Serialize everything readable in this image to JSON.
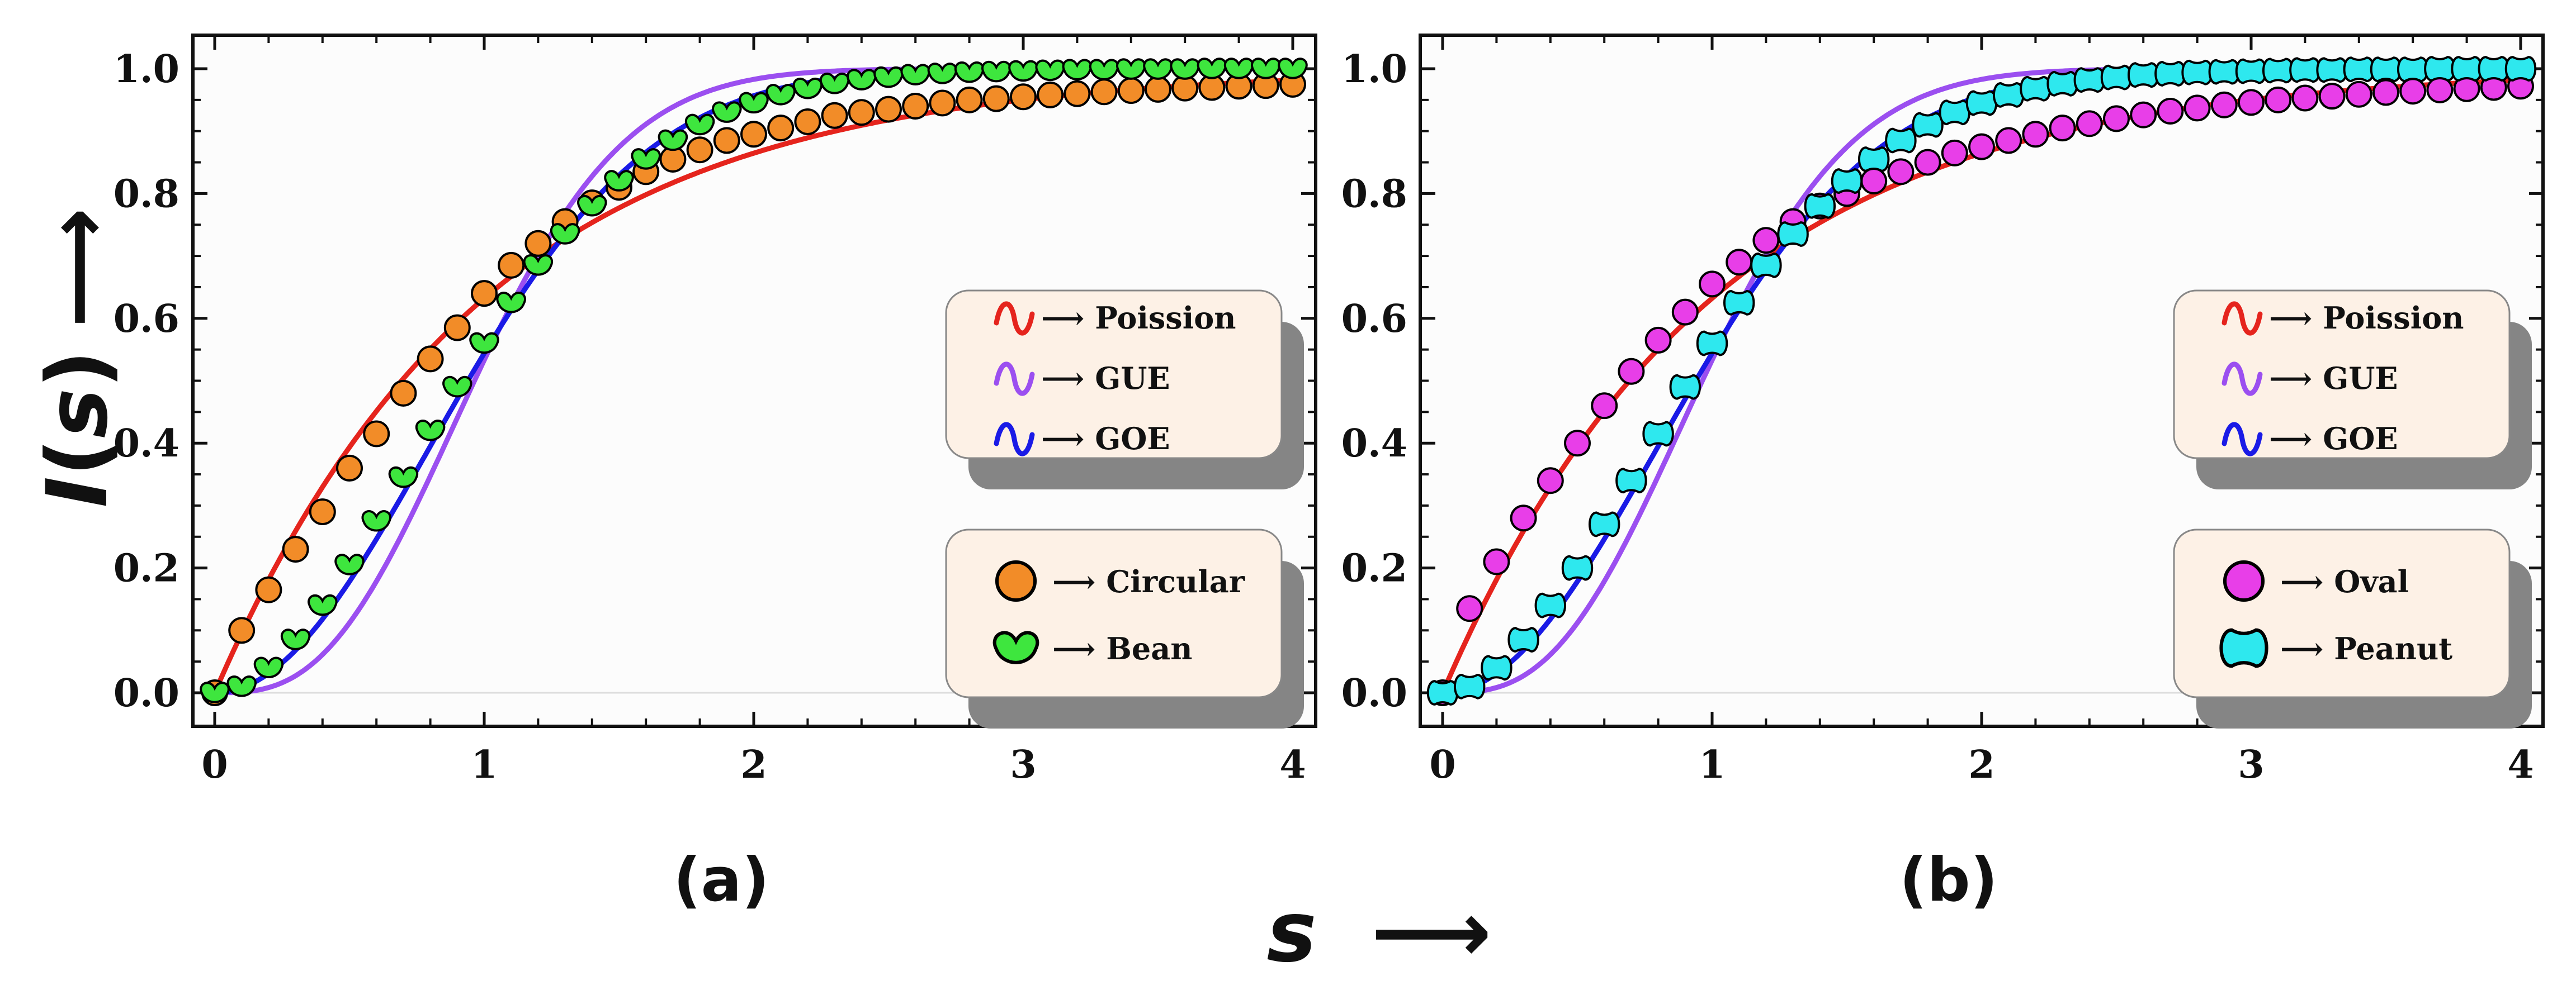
{
  "figure": {
    "ylabel_text": "I",
    "ylabel_open": "(",
    "ylabel_var": "s",
    "ylabel_close": ")",
    "ylabel_arrow": "⟶",
    "xlabel_var": "s",
    "xlabel_arrow": "⟶"
  },
  "legend_lines": [
    {
      "label": "⟶ Poission",
      "color": "#e5241d"
    },
    {
      "label": "⟶ GUE",
      "color": "#9b4ff0"
    },
    {
      "label": "⟶ GOE",
      "color": "#1a1ae6"
    }
  ],
  "colors": {
    "poisson": "#e5241d",
    "gue": "#9b4ff0",
    "goe": "#1a1ae6",
    "circular": "#f28c28",
    "bean": "#3ee63e",
    "oval": "#e83ee8",
    "peanut": "#2ee8ee",
    "legend_fill": "#fdf1e6",
    "legend_shadow": "#858585"
  },
  "chart_data": [
    {
      "type": "scatter",
      "panel": "(a)",
      "x_ticks": [
        "0",
        "1",
        "2",
        "3",
        "4"
      ],
      "y_ticks": [
        "0.0",
        "0.2",
        "0.4",
        "0.6",
        "0.8",
        "1.0"
      ],
      "xlim": [
        0,
        4
      ],
      "ylim": [
        0,
        1
      ],
      "curves": [
        {
          "name": "Poission",
          "formula": "1 - exp(-s)"
        },
        {
          "name": "GUE",
          "formula": "erf(2s/sqrt(pi)) - (4s/pi) exp(-4s^2/pi)"
        },
        {
          "name": "GOE",
          "formula": "1 - exp(-pi s^2 / 4)"
        }
      ],
      "series": [
        {
          "name": "Circular",
          "marker": "circle",
          "x": [
            0,
            0.1,
            0.2,
            0.3,
            0.4,
            0.5,
            0.6,
            0.7,
            0.8,
            0.9,
            1.0,
            1.1,
            1.2,
            1.3,
            1.4,
            1.5,
            1.6,
            1.7,
            1.8,
            1.9,
            2.0,
            2.1,
            2.2,
            2.3,
            2.4,
            2.5,
            2.6,
            2.7,
            2.8,
            2.9,
            3.0,
            3.1,
            3.2,
            3.3,
            3.4,
            3.5,
            3.6,
            3.7,
            3.8,
            3.9,
            4.0
          ],
          "y": [
            0.0,
            0.1,
            0.165,
            0.23,
            0.29,
            0.36,
            0.415,
            0.48,
            0.535,
            0.585,
            0.64,
            0.685,
            0.72,
            0.755,
            0.785,
            0.81,
            0.835,
            0.855,
            0.87,
            0.885,
            0.895,
            0.905,
            0.915,
            0.925,
            0.93,
            0.935,
            0.94,
            0.945,
            0.95,
            0.952,
            0.955,
            0.958,
            0.96,
            0.963,
            0.965,
            0.967,
            0.969,
            0.97,
            0.972,
            0.973,
            0.975
          ]
        },
        {
          "name": "Bean",
          "marker": "bean",
          "x": [
            0,
            0.1,
            0.2,
            0.3,
            0.4,
            0.5,
            0.6,
            0.7,
            0.8,
            0.9,
            1.0,
            1.1,
            1.2,
            1.3,
            1.4,
            1.5,
            1.6,
            1.7,
            1.8,
            1.9,
            2.0,
            2.1,
            2.2,
            2.3,
            2.4,
            2.5,
            2.6,
            2.7,
            2.8,
            2.9,
            3.0,
            3.1,
            3.2,
            3.3,
            3.4,
            3.5,
            3.6,
            3.7,
            3.8,
            3.9,
            4.0
          ],
          "y": [
            0.0,
            0.01,
            0.04,
            0.085,
            0.14,
            0.205,
            0.275,
            0.345,
            0.42,
            0.49,
            0.56,
            0.625,
            0.685,
            0.735,
            0.78,
            0.82,
            0.855,
            0.885,
            0.91,
            0.93,
            0.945,
            0.958,
            0.968,
            0.976,
            0.982,
            0.986,
            0.99,
            0.992,
            0.994,
            0.995,
            0.996,
            0.997,
            0.998,
            0.998,
            0.999,
            0.999,
            0.999,
            1.0,
            1.0,
            1.0,
            1.0
          ]
        }
      ]
    },
    {
      "type": "scatter",
      "panel": "(b)",
      "x_ticks": [
        "0",
        "1",
        "2",
        "3",
        "4"
      ],
      "y_ticks": [
        "0.0",
        "0.2",
        "0.4",
        "0.6",
        "0.8",
        "1.0"
      ],
      "xlim": [
        0,
        4
      ],
      "ylim": [
        0,
        1
      ],
      "curves": [
        {
          "name": "Poission",
          "formula": "1 - exp(-s)"
        },
        {
          "name": "GUE",
          "formula": "erf(2s/sqrt(pi)) - (4s/pi) exp(-4s^2/pi)"
        },
        {
          "name": "GOE",
          "formula": "1 - exp(-pi s^2 / 4)"
        }
      ],
      "series": [
        {
          "name": "Oval",
          "marker": "circle",
          "x": [
            0,
            0.1,
            0.2,
            0.3,
            0.4,
            0.5,
            0.6,
            0.7,
            0.8,
            0.9,
            1.0,
            1.1,
            1.2,
            1.3,
            1.4,
            1.5,
            1.6,
            1.7,
            1.8,
            1.9,
            2.0,
            2.1,
            2.2,
            2.3,
            2.4,
            2.5,
            2.6,
            2.7,
            2.8,
            2.9,
            3.0,
            3.1,
            3.2,
            3.3,
            3.4,
            3.5,
            3.6,
            3.7,
            3.8,
            3.9,
            4.0
          ],
          "y": [
            0.0,
            0.135,
            0.21,
            0.28,
            0.34,
            0.4,
            0.46,
            0.515,
            0.565,
            0.61,
            0.655,
            0.69,
            0.725,
            0.755,
            0.78,
            0.8,
            0.82,
            0.835,
            0.85,
            0.865,
            0.875,
            0.885,
            0.895,
            0.905,
            0.912,
            0.92,
            0.926,
            0.932,
            0.937,
            0.942,
            0.946,
            0.95,
            0.953,
            0.956,
            0.959,
            0.962,
            0.964,
            0.966,
            0.968,
            0.97,
            0.972
          ]
        },
        {
          "name": "Peanut",
          "marker": "peanut",
          "x": [
            0,
            0.1,
            0.2,
            0.3,
            0.4,
            0.5,
            0.6,
            0.7,
            0.8,
            0.9,
            1.0,
            1.1,
            1.2,
            1.3,
            1.4,
            1.5,
            1.6,
            1.7,
            1.8,
            1.9,
            2.0,
            2.1,
            2.2,
            2.3,
            2.4,
            2.5,
            2.6,
            2.7,
            2.8,
            2.9,
            3.0,
            3.1,
            3.2,
            3.3,
            3.4,
            3.5,
            3.6,
            3.7,
            3.8,
            3.9,
            4.0
          ],
          "y": [
            0.0,
            0.01,
            0.04,
            0.085,
            0.14,
            0.2,
            0.27,
            0.34,
            0.415,
            0.49,
            0.56,
            0.625,
            0.685,
            0.735,
            0.78,
            0.82,
            0.855,
            0.885,
            0.91,
            0.93,
            0.945,
            0.958,
            0.968,
            0.976,
            0.982,
            0.986,
            0.99,
            0.992,
            0.994,
            0.995,
            0.996,
            0.997,
            0.998,
            0.998,
            0.999,
            0.999,
            0.999,
            1.0,
            1.0,
            1.0,
            1.0
          ]
        }
      ]
    }
  ]
}
